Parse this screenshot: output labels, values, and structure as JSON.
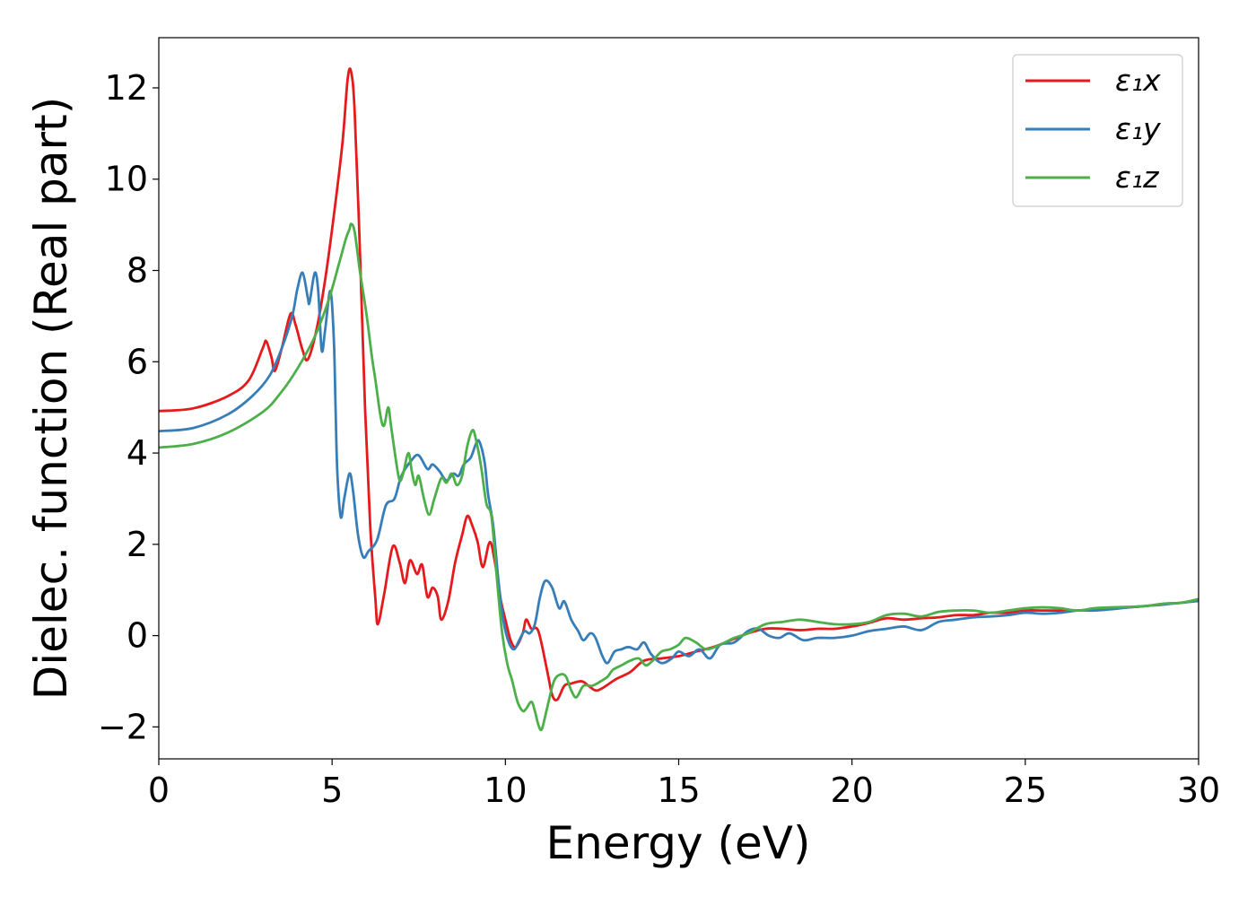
{
  "chart_data": {
    "type": "line",
    "title": "",
    "xlabel": "Energy (eV)",
    "ylabel": "Dielec. function (Real part)",
    "xlim": [
      0,
      30
    ],
    "ylim": [
      -2.7,
      13.1
    ],
    "xticks": [
      0,
      5,
      10,
      15,
      20,
      25,
      30
    ],
    "xtick_labels": [
      "0",
      "5",
      "10",
      "15",
      "20",
      "25",
      "30"
    ],
    "yticks": [
      -2,
      0,
      2,
      4,
      6,
      8,
      10,
      12
    ],
    "ytick_labels": [
      "−2",
      "0",
      "2",
      "4",
      "6",
      "8",
      "10",
      "12"
    ],
    "grid": false,
    "legend_position": "top-right",
    "series": [
      {
        "name": "ε₁x",
        "color": "#e41a1c",
        "points": [
          [
            0,
            4.92
          ],
          [
            1,
            4.98
          ],
          [
            2,
            5.25
          ],
          [
            2.6,
            5.6
          ],
          [
            3.0,
            6.3
          ],
          [
            3.1,
            6.45
          ],
          [
            3.25,
            6.1
          ],
          [
            3.35,
            5.8
          ],
          [
            3.55,
            6.3
          ],
          [
            3.8,
            7.05
          ],
          [
            3.95,
            6.8
          ],
          [
            4.15,
            6.25
          ],
          [
            4.3,
            6.05
          ],
          [
            4.55,
            6.7
          ],
          [
            4.8,
            7.8
          ],
          [
            5.05,
            9.2
          ],
          [
            5.3,
            10.8
          ],
          [
            5.45,
            12.2
          ],
          [
            5.55,
            12.35
          ],
          [
            5.65,
            11.5
          ],
          [
            5.8,
            8.5
          ],
          [
            5.95,
            5.0
          ],
          [
            6.1,
            2.4
          ],
          [
            6.25,
            0.8
          ],
          [
            6.32,
            0.25
          ],
          [
            6.5,
            0.9
          ],
          [
            6.75,
            1.95
          ],
          [
            6.95,
            1.6
          ],
          [
            7.1,
            1.15
          ],
          [
            7.25,
            1.65
          ],
          [
            7.45,
            1.35
          ],
          [
            7.6,
            1.55
          ],
          [
            7.75,
            0.85
          ],
          [
            7.9,
            1.05
          ],
          [
            8.05,
            0.85
          ],
          [
            8.15,
            0.35
          ],
          [
            8.35,
            0.75
          ],
          [
            8.55,
            1.6
          ],
          [
            8.75,
            2.2
          ],
          [
            8.9,
            2.62
          ],
          [
            9.05,
            2.4
          ],
          [
            9.2,
            2.05
          ],
          [
            9.35,
            1.5
          ],
          [
            9.55,
            2.05
          ],
          [
            9.7,
            1.6
          ],
          [
            9.85,
            0.85
          ],
          [
            10.0,
            0.35
          ],
          [
            10.15,
            -0.1
          ],
          [
            10.3,
            -0.25
          ],
          [
            10.5,
            0.05
          ],
          [
            10.6,
            0.35
          ],
          [
            10.75,
            0.15
          ],
          [
            10.95,
            0.1
          ],
          [
            11.2,
            -0.75
          ],
          [
            11.35,
            -1.3
          ],
          [
            11.5,
            -1.4
          ],
          [
            11.7,
            -1.1
          ],
          [
            11.9,
            -1.05
          ],
          [
            12.2,
            -1.0
          ],
          [
            12.4,
            -1.1
          ],
          [
            12.6,
            -1.2
          ],
          [
            12.8,
            -1.15
          ],
          [
            13.2,
            -0.95
          ],
          [
            13.6,
            -0.8
          ],
          [
            14.0,
            -0.55
          ],
          [
            14.5,
            -0.5
          ],
          [
            15.0,
            -0.45
          ],
          [
            15.5,
            -0.35
          ],
          [
            16.0,
            -0.25
          ],
          [
            16.5,
            -0.1
          ],
          [
            17.0,
            0.05
          ],
          [
            17.5,
            0.15
          ],
          [
            18.0,
            0.15
          ],
          [
            18.5,
            0.12
          ],
          [
            19.0,
            0.15
          ],
          [
            19.5,
            0.15
          ],
          [
            20.0,
            0.2
          ],
          [
            20.5,
            0.28
          ],
          [
            21.0,
            0.38
          ],
          [
            21.5,
            0.35
          ],
          [
            22.0,
            0.38
          ],
          [
            22.5,
            0.4
          ],
          [
            23.0,
            0.45
          ],
          [
            23.5,
            0.45
          ],
          [
            24.0,
            0.5
          ],
          [
            24.5,
            0.5
          ],
          [
            25.0,
            0.55
          ],
          [
            25.5,
            0.55
          ],
          [
            26.0,
            0.55
          ],
          [
            26.5,
            0.55
          ],
          [
            27.0,
            0.58
          ],
          [
            27.5,
            0.6
          ],
          [
            28.0,
            0.62
          ],
          [
            28.5,
            0.65
          ],
          [
            29.0,
            0.7
          ],
          [
            29.5,
            0.72
          ],
          [
            30.0,
            0.78
          ]
        ]
      },
      {
        "name": "ε₁y",
        "color": "#377eb8",
        "points": [
          [
            0,
            4.48
          ],
          [
            1,
            4.55
          ],
          [
            2,
            4.85
          ],
          [
            2.7,
            5.25
          ],
          [
            3.2,
            5.7
          ],
          [
            3.55,
            6.3
          ],
          [
            3.85,
            7.0
          ],
          [
            4.0,
            7.6
          ],
          [
            4.15,
            7.95
          ],
          [
            4.3,
            7.4
          ],
          [
            4.35,
            7.3
          ],
          [
            4.5,
            7.95
          ],
          [
            4.6,
            7.55
          ],
          [
            4.7,
            6.25
          ],
          [
            4.8,
            6.7
          ],
          [
            4.95,
            7.55
          ],
          [
            5.05,
            6.5
          ],
          [
            5.1,
            5.0
          ],
          [
            5.15,
            3.6
          ],
          [
            5.25,
            2.6
          ],
          [
            5.35,
            3.0
          ],
          [
            5.5,
            3.55
          ],
          [
            5.6,
            3.2
          ],
          [
            5.75,
            2.2
          ],
          [
            5.9,
            1.72
          ],
          [
            6.05,
            1.85
          ],
          [
            6.3,
            2.1
          ],
          [
            6.55,
            2.85
          ],
          [
            6.8,
            3.0
          ],
          [
            7.0,
            3.5
          ],
          [
            7.3,
            3.85
          ],
          [
            7.5,
            3.95
          ],
          [
            7.75,
            3.65
          ],
          [
            7.9,
            3.75
          ],
          [
            8.1,
            3.6
          ],
          [
            8.3,
            3.4
          ],
          [
            8.5,
            3.55
          ],
          [
            8.65,
            3.5
          ],
          [
            8.8,
            3.75
          ],
          [
            9.0,
            3.9
          ],
          [
            9.15,
            4.2
          ],
          [
            9.25,
            4.25
          ],
          [
            9.4,
            3.8
          ],
          [
            9.5,
            3.1
          ],
          [
            9.65,
            2.4
          ],
          [
            9.8,
            1.2
          ],
          [
            9.95,
            0.3
          ],
          [
            10.1,
            -0.15
          ],
          [
            10.25,
            -0.3
          ],
          [
            10.4,
            -0.1
          ],
          [
            10.55,
            0.1
          ],
          [
            10.7,
            0.05
          ],
          [
            10.85,
            0.25
          ],
          [
            11.0,
            0.85
          ],
          [
            11.15,
            1.2
          ],
          [
            11.35,
            1.05
          ],
          [
            11.55,
            0.6
          ],
          [
            11.7,
            0.75
          ],
          [
            11.9,
            0.35
          ],
          [
            12.1,
            0.1
          ],
          [
            12.25,
            -0.1
          ],
          [
            12.45,
            0.05
          ],
          [
            12.6,
            -0.05
          ],
          [
            12.8,
            -0.45
          ],
          [
            12.95,
            -0.6
          ],
          [
            13.15,
            -0.35
          ],
          [
            13.35,
            -0.3
          ],
          [
            13.55,
            -0.25
          ],
          [
            13.8,
            -0.3
          ],
          [
            14.0,
            -0.15
          ],
          [
            14.2,
            -0.4
          ],
          [
            14.5,
            -0.6
          ],
          [
            14.8,
            -0.5
          ],
          [
            15.0,
            -0.35
          ],
          [
            15.3,
            -0.45
          ],
          [
            15.6,
            -0.3
          ],
          [
            15.9,
            -0.5
          ],
          [
            16.2,
            -0.2
          ],
          [
            16.6,
            -0.15
          ],
          [
            17.0,
            0.1
          ],
          [
            17.3,
            0.15
          ],
          [
            17.6,
            0.0
          ],
          [
            17.9,
            -0.05
          ],
          [
            18.2,
            0.05
          ],
          [
            18.6,
            -0.1
          ],
          [
            19.0,
            -0.05
          ],
          [
            19.5,
            -0.05
          ],
          [
            20.0,
            0.0
          ],
          [
            20.5,
            0.1
          ],
          [
            21.0,
            0.15
          ],
          [
            21.5,
            0.2
          ],
          [
            22.0,
            0.12
          ],
          [
            22.5,
            0.3
          ],
          [
            23.0,
            0.35
          ],
          [
            23.5,
            0.4
          ],
          [
            24.0,
            0.42
          ],
          [
            24.5,
            0.45
          ],
          [
            25.0,
            0.5
          ],
          [
            25.5,
            0.48
          ],
          [
            26.0,
            0.5
          ],
          [
            26.5,
            0.55
          ],
          [
            27.0,
            0.55
          ],
          [
            27.5,
            0.58
          ],
          [
            28.0,
            0.62
          ],
          [
            28.5,
            0.65
          ],
          [
            29.0,
            0.68
          ],
          [
            29.5,
            0.72
          ],
          [
            30.0,
            0.76
          ]
        ]
      },
      {
        "name": "ε₁z",
        "color": "#4daf4a",
        "points": [
          [
            0,
            4.12
          ],
          [
            1,
            4.2
          ],
          [
            2,
            4.45
          ],
          [
            3.0,
            4.9
          ],
          [
            3.5,
            5.3
          ],
          [
            4.0,
            5.85
          ],
          [
            4.5,
            6.55
          ],
          [
            4.9,
            7.35
          ],
          [
            5.2,
            8.15
          ],
          [
            5.4,
            8.7
          ],
          [
            5.5,
            8.9
          ],
          [
            5.55,
            9.02
          ],
          [
            5.65,
            8.85
          ],
          [
            5.8,
            8.0
          ],
          [
            6.0,
            7.0
          ],
          [
            6.15,
            6.1
          ],
          [
            6.25,
            5.6
          ],
          [
            6.4,
            4.8
          ],
          [
            6.5,
            4.6
          ],
          [
            6.62,
            5.0
          ],
          [
            6.7,
            4.6
          ],
          [
            6.85,
            3.8
          ],
          [
            6.95,
            3.4
          ],
          [
            7.05,
            3.55
          ],
          [
            7.2,
            4.0
          ],
          [
            7.3,
            3.6
          ],
          [
            7.4,
            3.3
          ],
          [
            7.5,
            3.5
          ],
          [
            7.65,
            3.0
          ],
          [
            7.8,
            2.65
          ],
          [
            7.95,
            3.0
          ],
          [
            8.15,
            3.45
          ],
          [
            8.3,
            3.35
          ],
          [
            8.45,
            3.55
          ],
          [
            8.6,
            3.3
          ],
          [
            8.75,
            3.5
          ],
          [
            8.9,
            4.15
          ],
          [
            9.05,
            4.5
          ],
          [
            9.15,
            4.3
          ],
          [
            9.3,
            3.7
          ],
          [
            9.45,
            2.9
          ],
          [
            9.6,
            2.6
          ],
          [
            9.75,
            1.3
          ],
          [
            9.9,
            0.1
          ],
          [
            10.05,
            -0.6
          ],
          [
            10.2,
            -1.0
          ],
          [
            10.35,
            -1.45
          ],
          [
            10.5,
            -1.65
          ],
          [
            10.6,
            -1.6
          ],
          [
            10.75,
            -1.45
          ],
          [
            10.85,
            -1.65
          ],
          [
            10.95,
            -1.95
          ],
          [
            11.05,
            -2.05
          ],
          [
            11.2,
            -1.6
          ],
          [
            11.4,
            -1.0
          ],
          [
            11.6,
            -0.85
          ],
          [
            11.75,
            -0.9
          ],
          [
            11.9,
            -1.2
          ],
          [
            12.05,
            -1.35
          ],
          [
            12.25,
            -1.1
          ],
          [
            12.5,
            -1.1
          ],
          [
            12.75,
            -1.0
          ],
          [
            12.95,
            -0.9
          ],
          [
            13.1,
            -0.75
          ],
          [
            13.35,
            -0.65
          ],
          [
            13.6,
            -0.55
          ],
          [
            13.85,
            -0.5
          ],
          [
            14.05,
            -0.65
          ],
          [
            14.25,
            -0.55
          ],
          [
            14.5,
            -0.35
          ],
          [
            14.75,
            -0.3
          ],
          [
            15.0,
            -0.2
          ],
          [
            15.2,
            -0.05
          ],
          [
            15.5,
            -0.15
          ],
          [
            15.8,
            -0.3
          ],
          [
            16.2,
            -0.2
          ],
          [
            16.6,
            -0.05
          ],
          [
            17.0,
            0.05
          ],
          [
            17.5,
            0.25
          ],
          [
            18.0,
            0.3
          ],
          [
            18.5,
            0.35
          ],
          [
            19.0,
            0.3
          ],
          [
            19.5,
            0.25
          ],
          [
            20.0,
            0.25
          ],
          [
            20.5,
            0.3
          ],
          [
            21.0,
            0.45
          ],
          [
            21.5,
            0.48
          ],
          [
            22.0,
            0.42
          ],
          [
            22.5,
            0.52
          ],
          [
            23.0,
            0.55
          ],
          [
            23.5,
            0.55
          ],
          [
            24.0,
            0.5
          ],
          [
            24.5,
            0.55
          ],
          [
            25.0,
            0.6
          ],
          [
            25.5,
            0.62
          ],
          [
            26.0,
            0.6
          ],
          [
            26.5,
            0.55
          ],
          [
            27.0,
            0.6
          ],
          [
            27.5,
            0.62
          ],
          [
            28.0,
            0.63
          ],
          [
            28.5,
            0.65
          ],
          [
            29.0,
            0.7
          ],
          [
            29.5,
            0.72
          ],
          [
            30.0,
            0.8
          ]
        ]
      }
    ]
  }
}
